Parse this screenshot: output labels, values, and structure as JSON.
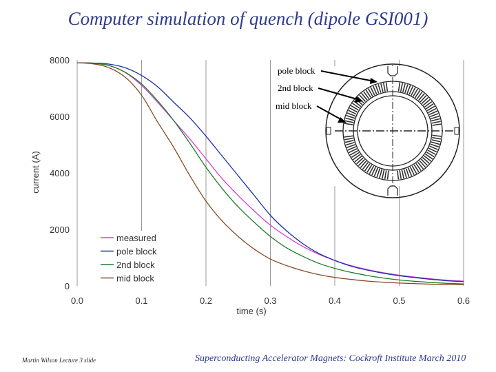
{
  "slide_title": "Computer simulation of quench (dipole GSI001)",
  "footer_left": "Martin Wilson Lecture 3 slide",
  "footer_right": "Superconducting Accelerator Magnets:  Cockroft Institute March 2010",
  "colors": {
    "measured": "#d43fd4",
    "pole_block": "#1a2fa8",
    "2nd_block": "#1f7a2a",
    "mid_block": "#8b4a26"
  },
  "diagram_labels": [
    "pole block",
    "2nd block",
    "mid block"
  ],
  "chart_data": {
    "type": "line",
    "title": "",
    "xlabel": "time (s)",
    "ylabel": "current (A)",
    "xlim": [
      0,
      0.6
    ],
    "ylim": [
      0,
      8000
    ],
    "xticks": [
      "0.0",
      "0.1",
      "0.2",
      "0.3",
      "0.4",
      "0.5",
      "0.6"
    ],
    "yticks": [
      "0",
      "2000",
      "4000",
      "6000",
      "8000"
    ],
    "grid": "vertical",
    "legend": "bottom-left",
    "x": [
      0,
      0.025,
      0.05,
      0.075,
      0.1,
      0.125,
      0.15,
      0.175,
      0.2,
      0.225,
      0.25,
      0.275,
      0.3,
      0.325,
      0.35,
      0.375,
      0.4,
      0.425,
      0.45,
      0.475,
      0.5,
      0.525,
      0.55,
      0.575,
      0.6
    ],
    "series": [
      {
        "name": "measured",
        "color": "#d43fd4",
        "values": [
          7900,
          7880,
          7800,
          7550,
          7100,
          6500,
          5850,
          5200,
          4500,
          3800,
          3200,
          2650,
          2150,
          1750,
          1400,
          1120,
          900,
          720,
          580,
          470,
          380,
          310,
          250,
          200,
          170
        ]
      },
      {
        "name": "pole block",
        "color": "#1a2fa8",
        "values": [
          7900,
          7890,
          7850,
          7720,
          7450,
          7050,
          6500,
          5950,
          5300,
          4600,
          3900,
          3200,
          2500,
          1950,
          1500,
          1150,
          900,
          700,
          560,
          450,
          360,
          290,
          230,
          180,
          150
        ]
      },
      {
        "name": "2nd block",
        "color": "#1f7a2a",
        "values": [
          7900,
          7880,
          7800,
          7560,
          7150,
          6550,
          5850,
          5050,
          4200,
          3450,
          2800,
          2250,
          1750,
          1350,
          1050,
          800,
          620,
          480,
          370,
          280,
          210,
          160,
          120,
          90,
          70
        ]
      },
      {
        "name": "mid block",
        "color": "#8b4a26",
        "values": [
          7900,
          7860,
          7720,
          7380,
          6750,
          5800,
          4900,
          3900,
          3000,
          2300,
          1750,
          1300,
          950,
          720,
          540,
          400,
          300,
          230,
          170,
          130,
          100,
          80,
          60,
          50,
          40
        ]
      }
    ]
  }
}
